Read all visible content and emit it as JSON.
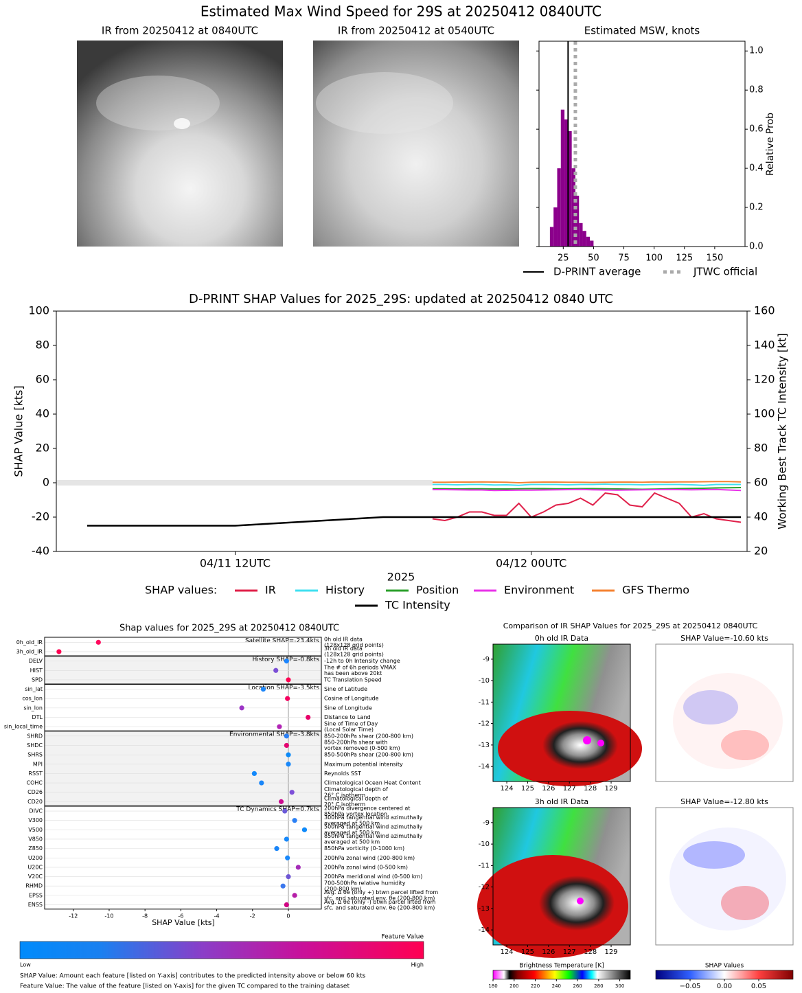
{
  "title": "Estimated Max Wind Speed for 29S at 20250412 0840UTC",
  "chart_data": [
    {
      "type": "image",
      "title": "IR from 20250412 at 0840UTC"
    },
    {
      "type": "image",
      "title": "IR from 20250412 at 0540UTC"
    },
    {
      "type": "histogram",
      "title": "Estimated MSW, knots",
      "bins": [
        14,
        17,
        20,
        23,
        26,
        29,
        32,
        35,
        38,
        41,
        44,
        47,
        50
      ],
      "counts": [
        0.1,
        0.2,
        0.4,
        0.7,
        0.65,
        0.59,
        0.4,
        0.26,
        0.12,
        0.08,
        0.05,
        0.03
      ],
      "color": "#8b008b",
      "xlim": [
        5,
        175
      ],
      "xticks": [
        25,
        50,
        75,
        100,
        125,
        150
      ],
      "ylim": [
        0,
        1.05
      ],
      "yticks": [
        {
          "value": 0,
          "label": "0.0"
        },
        0.2,
        0.4,
        0.6,
        0.8,
        {
          "value": 1,
          "label": "1.0"
        }
      ],
      "ylabel": "Relative Prob",
      "lines": [
        {
          "name": "D-PRINT average",
          "x": 29,
          "color": "#000000",
          "style": "solid"
        },
        {
          "name": "JTWC official",
          "x": 35,
          "color": "#aaaaaa",
          "style": "dotted"
        }
      ]
    },
    {
      "type": "line",
      "title": "D-PRINT SHAP Values for 2025_29S: updated at 20250412 0840 UTC",
      "xlabel": "2025",
      "ylabel": "SHAP Value [kts]",
      "y2label": "Working Best Track TC Intensity [kt]",
      "legend_title": "SHAP values:",
      "xlim": [
        4.75,
        32.75
      ],
      "xticks": [
        {
          "value": 12,
          "label": "04/11 12UTC"
        },
        {
          "value": 24,
          "label": "04/12 00UTC"
        }
      ],
      "ylim": [
        -40,
        100
      ],
      "yticks": [
        -40,
        -20,
        0,
        20,
        40,
        60,
        80,
        100
      ],
      "y2lim": [
        20,
        160
      ],
      "y2ticks": [
        20,
        40,
        60,
        80,
        100,
        120,
        140,
        160
      ],
      "series": [
        {
          "name": "IR",
          "color": "#e0204a",
          "x": [
            20,
            20.5,
            21,
            21.5,
            22,
            22.5,
            23,
            23.5,
            24,
            24.5,
            25,
            25.5,
            26,
            26.5,
            27,
            27.5,
            28,
            28.5,
            29,
            29.5,
            30,
            30.5,
            31,
            31.5,
            32,
            32.5
          ],
          "values": [
            -21,
            -22,
            -20,
            -17,
            -17,
            -19,
            -19,
            -12,
            -20,
            -17,
            -13,
            -12,
            -9,
            -13,
            -6,
            -7,
            -13,
            -14,
            -6,
            -9,
            -12,
            -20,
            -18,
            -21,
            -22,
            -23
          ]
        },
        {
          "name": "History",
          "color": "#40e0f0",
          "x": [
            20,
            20.5,
            21,
            21.5,
            22,
            22.5,
            23,
            23.5,
            24,
            24.5,
            25,
            25.5,
            26,
            26.5,
            27,
            27.5,
            28,
            28.5,
            29,
            29.5,
            30,
            30.5,
            31,
            31.5,
            32,
            32.5
          ],
          "values": [
            -1,
            -1,
            -1.2,
            -1,
            -1,
            -1.3,
            -1.2,
            -1.5,
            -1,
            -1,
            -1,
            -1.2,
            -1,
            -1,
            -0.8,
            -1,
            -1,
            -1.2,
            -1,
            -1,
            -1,
            -1.2,
            -1.5,
            -1,
            -1,
            -1
          ]
        },
        {
          "name": "Position",
          "color": "#2ca02c",
          "x": [
            20,
            20.5,
            21,
            21.5,
            22,
            22.5,
            23,
            23.5,
            24,
            24.5,
            25,
            25.5,
            26,
            26.5,
            27,
            27.5,
            28,
            28.5,
            29,
            29.5,
            30,
            30.5,
            31,
            31.5,
            32,
            32.5
          ],
          "values": [
            -3.5,
            -3.5,
            -3.6,
            -3.5,
            -3.5,
            -3.6,
            -3.6,
            -3.5,
            -3.4,
            -3.4,
            -3.5,
            -3.5,
            -3.4,
            -3.4,
            -3.5,
            -3.6,
            -3.7,
            -3.8,
            -3.7,
            -3.5,
            -3.4,
            -3.3,
            -3.2,
            -3,
            -2.9,
            -2.8
          ]
        },
        {
          "name": "Environment",
          "color": "#e833e8",
          "x": [
            20,
            20.5,
            21,
            21.5,
            22,
            22.5,
            23,
            23.5,
            24,
            24.5,
            25,
            25.5,
            26,
            26.5,
            27,
            27.5,
            28,
            28.5,
            29,
            29.5,
            30,
            30.5,
            31,
            31.5,
            32,
            32.5
          ],
          "values": [
            -4,
            -4,
            -4.1,
            -4.2,
            -4.2,
            -4.5,
            -4.4,
            -4.3,
            -4.3,
            -4.2,
            -4.1,
            -4,
            -3.9,
            -4.1,
            -4.2,
            -4.3,
            -4.2,
            -4.1,
            -4,
            -3.9,
            -4,
            -4.1,
            -4,
            -3.9,
            -4.2,
            -4.5
          ]
        },
        {
          "name": "GFS Thermo",
          "color": "#f58231",
          "x": [
            20,
            20.5,
            21,
            21.5,
            22,
            22.5,
            23,
            23.5,
            24,
            24.5,
            25,
            25.5,
            26,
            26.5,
            27,
            27.5,
            28,
            28.5,
            29,
            29.5,
            30,
            30.5,
            31,
            31.5,
            32,
            32.5
          ],
          "values": [
            0.3,
            0.3,
            0.4,
            0.4,
            0.5,
            0.4,
            0.3,
            0,
            0.3,
            0.4,
            0.4,
            0.3,
            0.3,
            0.2,
            0.3,
            0.4,
            0.4,
            0.3,
            0.5,
            0.4,
            0.5,
            0.5,
            0.6,
            0.7,
            0.7,
            0.5
          ]
        },
        {
          "name": "TC Intensity",
          "color": "#000000",
          "axis": "y2",
          "x": [
            6,
            12,
            18,
            24,
            30,
            32.5
          ],
          "values": [
            35,
            35,
            40,
            40,
            40,
            40
          ]
        }
      ]
    },
    {
      "type": "dot",
      "title": "Shap values for 2025_29S at 20250412 0840UTC",
      "xlabel": "SHAP Value [kts]",
      "xlim": [
        -13.6,
        1.84
      ],
      "xticks": [
        -12,
        -10,
        -8,
        -6,
        -4,
        -2,
        0
      ],
      "colorbar": {
        "title": "Feature Value",
        "low": "Low",
        "high": "High"
      },
      "notes": [
        "SHAP Value: Amount each feature [listed on Y-axis] contributes to the predicted intensity above or below 60 kts",
        "Feature Value: The value of the feature [listed on Y-axis] for the given TC compared to the training dataset"
      ],
      "groups": [
        {
          "label": "Satellite SHAP=-23.4kts",
          "features": [
            {
              "name": "0h_old_IR",
              "value": -10.6,
              "color": "#ff0b5e",
              "description": [
                "0h old IR data",
                "(128x128 grid points)"
              ]
            },
            {
              "name": "3h_old_IR",
              "value": -12.8,
              "color": "#ff0052",
              "description": [
                "3h old IR data",
                "(128x128 grid points)"
              ]
            }
          ]
        },
        {
          "label": "History SHAP=-0.8kts",
          "features": [
            {
              "name": "DELV",
              "value": -0.1,
              "color": "#1a85ff",
              "description": [
                "-12h to 0h Intensity change"
              ]
            },
            {
              "name": "HIST",
              "value": -0.7,
              "color": "#7b4fd6",
              "description": [
                "The # of 6h periods VMAX",
                "has been above 20kt"
              ]
            },
            {
              "name": "SPD",
              "value": 0,
              "color": "#ff0052",
              "description": [
                "TC Translation Speed"
              ]
            }
          ]
        },
        {
          "label": "Location SHAP=-3.5kts",
          "features": [
            {
              "name": "sin_lat",
              "value": -1.4,
              "color": "#1d86f8",
              "description": [
                "Sine of Latitude"
              ]
            },
            {
              "name": "cos_lon",
              "value": -0.05,
              "color": "#f6005f",
              "description": [
                "Cosine of Longitude"
              ]
            },
            {
              "name": "sin_lon",
              "value": -2.6,
              "color": "#9c35c6",
              "description": [
                "Sine of Longitude"
              ]
            },
            {
              "name": "DTL",
              "value": 1.1,
              "color": "#e8006a",
              "description": [
                "Distance to Land"
              ]
            },
            {
              "name": "sin_local_time",
              "value": -0.5,
              "color": "#b124b5",
              "description": [
                "Sine of Time of Day",
                "(Local Solar Time)"
              ]
            }
          ]
        },
        {
          "label": "Environmental SHAP=-3.8kts",
          "features": [
            {
              "name": "SHRD",
              "value": -0.1,
              "color": "#2a7ff5",
              "description": [
                "850-200hPa shear (200-800 km)"
              ]
            },
            {
              "name": "SHDC",
              "value": -0.1,
              "color": "#e40571",
              "description": [
                "850-200hPa shear with",
                "vortex removed (0-500 km)"
              ]
            },
            {
              "name": "SHRS",
              "value": 0,
              "color": "#0b8af8",
              "description": [
                "850-500hPa shear (200-800 km)"
              ]
            },
            {
              "name": "MPI",
              "value": 0,
              "color": "#1888fa",
              "description": [
                "Maximum potential intensity"
              ]
            },
            {
              "name": "RSST",
              "value": -1.9,
              "color": "#1389fb",
              "description": [
                "Reynolds SST"
              ]
            },
            {
              "name": "COHC",
              "value": -1.5,
              "color": "#1a86f8",
              "description": [
                "Climatological Ocean Heat Content"
              ]
            },
            {
              "name": "CD26",
              "value": 0.2,
              "color": "#7d4fd8",
              "description": [
                "Climatological depth of",
                "26° C isotherm"
              ]
            },
            {
              "name": "CD20",
              "value": -0.4,
              "color": "#cc0a8f",
              "description": [
                "Climatological depth of",
                "20° C isotherm"
              ]
            }
          ]
        },
        {
          "label": "TC Dynamics SHAP=0.7kts",
          "features": [
            {
              "name": "DIVC",
              "value": -0.2,
              "color": "#6b5ad8",
              "description": [
                "200hPa divergence centered at",
                "850hPa vortex location"
              ]
            },
            {
              "name": "V300",
              "value": 0.35,
              "color": "#2a80f5",
              "description": [
                "300hPa tangential wind azimuthally",
                "averaged at 500 km"
              ]
            },
            {
              "name": "V500",
              "value": 0.9,
              "color": "#0f8afa",
              "description": [
                "500hPa tangential wind azimuthally",
                "averaged at 500 km"
              ]
            },
            {
              "name": "V850",
              "value": -0.1,
              "color": "#1788fa",
              "description": [
                "850hPa tangential wind azimuthally",
                "averaged at 500 km"
              ]
            },
            {
              "name": "Z850",
              "value": -0.65,
              "color": "#1a85f8",
              "description": [
                "850hPa vorticity (0-1000 km)"
              ]
            },
            {
              "name": "U200",
              "value": -0.05,
              "color": "#1988fa",
              "description": [
                "200hPa zonal wind (200-800 km)"
              ]
            },
            {
              "name": "U20C",
              "value": 0.55,
              "color": "#a52cb8",
              "description": [
                "200hPa zonal wind (0-500 km)"
              ]
            },
            {
              "name": "V20C",
              "value": 0,
              "color": "#6e56d4",
              "description": [
                "200hPa meridional wind (0-500 km)"
              ]
            },
            {
              "name": "RHMD",
              "value": -0.3,
              "color": "#3c78ee",
              "description": [
                "700-500hPa relative humidity",
                "(200-800 km)"
              ]
            },
            {
              "name": "EPSS",
              "value": 0.35,
              "color": "#b51ea7",
              "description": [
                "Avg. Δ θe (only +) btwn parcel lifted from",
                "sfc. and saturated env. θe (200-800 km)"
              ]
            },
            {
              "name": "ENSS",
              "value": -0.1,
              "color": "#d10583",
              "description": [
                "Avg. Δ θe (only -) btwn parcel lifted from",
                "sfc. and saturated env. θe (200-800 km)"
              ]
            }
          ]
        }
      ]
    },
    {
      "type": "image_grid",
      "title": "Comparison of IR SHAP Values for 2025_29S at 20250412 0840UTC",
      "xlim": [
        123.34,
        129.92
      ],
      "xticks": [
        124,
        125,
        126,
        127,
        128,
        129
      ],
      "ylim": [
        -14.7,
        -8.3
      ],
      "yticks": [
        -9,
        -10,
        -11,
        -12,
        -13,
        -14
      ],
      "panels": [
        {
          "kind": "ir",
          "title": "0h old IR Data"
        },
        {
          "kind": "shap",
          "title": "SHAP Value=-10.60 kts"
        },
        {
          "kind": "ir",
          "title": "3h old IR Data"
        },
        {
          "kind": "shap",
          "title": "SHAP Value=-12.80 kts"
        }
      ],
      "bt_colorbar": {
        "title": "Brightness Temperature [K]",
        "lim": [
          180,
          310
        ],
        "ticks": [
          180,
          200,
          220,
          240,
          260,
          280,
          300
        ]
      },
      "shap_colorbar": {
        "title": "SHAP Values",
        "lim": [
          -0.1,
          0.1
        ],
        "ticks": [
          {
            "value": -0.05,
            "label": "−0.05"
          },
          {
            "value": 0,
            "label": "0.00"
          },
          0.05
        ]
      }
    }
  ]
}
